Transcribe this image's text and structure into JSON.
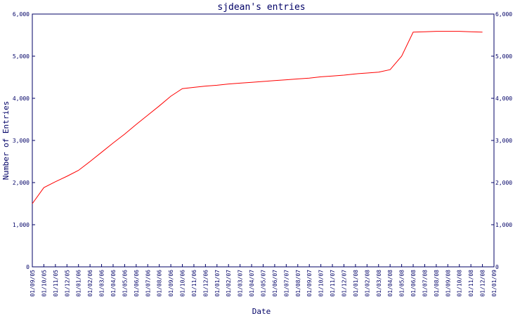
{
  "chart_data": {
    "type": "line",
    "title": "sjdean's entries",
    "xlabel": "Date",
    "ylabel": "Number of Entries",
    "ylim": [
      0,
      6000
    ],
    "y_ticks": [
      "0",
      "1,000",
      "2,000",
      "3,000",
      "4,000",
      "5,000",
      "6,000"
    ],
    "y_tick_values": [
      0,
      1000,
      2000,
      3000,
      4000,
      5000,
      6000
    ],
    "x_ticks": [
      "01/09/05",
      "01/10/05",
      "01/11/05",
      "01/12/05",
      "01/01/06",
      "01/02/06",
      "01/03/06",
      "01/04/06",
      "01/05/06",
      "01/06/06",
      "01/07/06",
      "01/08/06",
      "01/09/06",
      "01/10/06",
      "01/11/06",
      "01/12/06",
      "01/01/07",
      "01/02/07",
      "01/03/07",
      "01/04/07",
      "01/05/07",
      "01/06/07",
      "01/07/07",
      "01/08/07",
      "01/09/07",
      "01/10/07",
      "01/11/07",
      "01/12/07",
      "01/01/08",
      "01/02/08",
      "01/03/08",
      "01/04/08",
      "01/05/08",
      "01/06/08",
      "01/07/08",
      "01/08/08",
      "01/09/08",
      "01/10/08",
      "01/11/08",
      "01/12/08",
      "01/01/09"
    ],
    "grid": false,
    "colors": {
      "line": "#ff0000",
      "axis": "#000066",
      "text": "#000066",
      "background": "#ffffff"
    },
    "series": [
      {
        "x": [
          "01/09/05",
          "01/10/05",
          "01/11/05",
          "01/12/05",
          "01/01/06",
          "01/02/06",
          "01/03/06",
          "01/04/06",
          "01/05/06",
          "01/06/06",
          "01/07/06",
          "01/08/06",
          "01/09/06",
          "01/10/06",
          "01/11/06",
          "01/12/06",
          "01/01/07",
          "01/02/07",
          "01/03/07",
          "01/04/07",
          "01/05/07",
          "01/06/07",
          "01/07/07",
          "01/08/07",
          "01/09/07",
          "01/10/07",
          "01/11/07",
          "01/12/07",
          "01/01/08",
          "01/02/08",
          "01/03/08",
          "01/04/08",
          "01/05/08",
          "01/06/08",
          "01/07/08",
          "01/08/08",
          "01/09/08",
          "01/10/08",
          "01/11/08",
          "01/12/08"
        ],
        "y": [
          1500,
          1880,
          2020,
          2150,
          2290,
          2500,
          2720,
          2940,
          3150,
          3380,
          3600,
          3820,
          4050,
          4230,
          4260,
          4290,
          4310,
          4340,
          4360,
          4380,
          4400,
          4420,
          4440,
          4460,
          4480,
          4510,
          4530,
          4550,
          4580,
          4600,
          4620,
          4680,
          5000,
          5570,
          5580,
          5590,
          5590,
          5590,
          5580,
          5570
        ]
      }
    ]
  }
}
